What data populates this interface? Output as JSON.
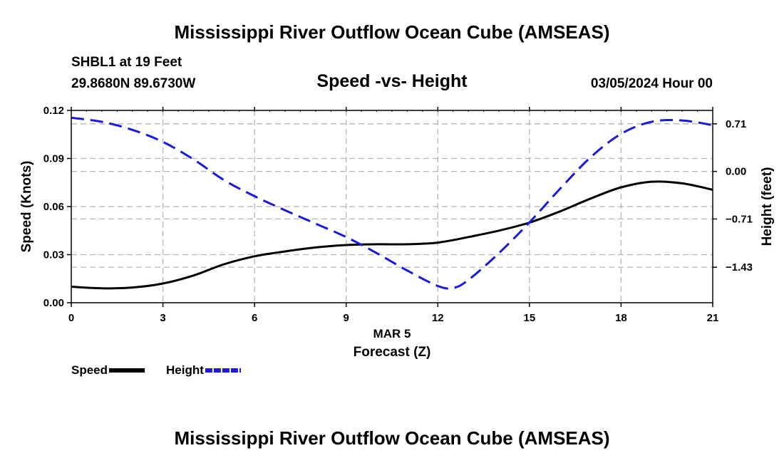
{
  "header": {
    "title": "Mississippi River Outflow Ocean Cube (AMSEAS)",
    "station": "SHBL1 at 19 Feet",
    "coordinates": "29.8680N  89.6730W",
    "subtitle": "Speed -vs- Height",
    "date": "03/05/2024 Hour 00"
  },
  "footer": {
    "title": "Mississippi River Outflow Ocean Cube (AMSEAS)"
  },
  "chart_data": {
    "type": "line",
    "title": "Speed -vs- Height",
    "xlabel": "Forecast (Z)",
    "date_label": "MAR 5",
    "ylabel_left": "Speed (Knots)",
    "ylabel_right": "Height (feet)",
    "xlim": [
      0,
      21
    ],
    "ylim_left": [
      0,
      0.12
    ],
    "ylim_right": [
      -1.96,
      0.91
    ],
    "x_ticks": [
      "0",
      "3",
      "6",
      "9",
      "12",
      "15",
      "18",
      "21"
    ],
    "y_ticks_left": [
      "0.00",
      "0.03",
      "0.06",
      "0.09",
      "0.12"
    ],
    "y_ticks_right": [
      "0.71",
      "0.00",
      "-0.71",
      "-1.43"
    ],
    "grid": true,
    "legend_position": "bottom-left",
    "series": [
      {
        "name": "Speed",
        "axis": "left",
        "color": "#000000",
        "style": "solid",
        "x": [
          0,
          1,
          2,
          3,
          4,
          5,
          6,
          7,
          8,
          9,
          10,
          11,
          12,
          13,
          14,
          15,
          16,
          17,
          18,
          19,
          20,
          21
        ],
        "values": [
          0.01,
          0.009,
          0.0095,
          0.012,
          0.017,
          0.024,
          0.029,
          0.032,
          0.0345,
          0.036,
          0.0365,
          0.0365,
          0.0375,
          0.041,
          0.045,
          0.05,
          0.057,
          0.065,
          0.072,
          0.0755,
          0.0745,
          0.0705
        ]
      },
      {
        "name": "Height",
        "axis": "right",
        "color": "#1a1adc",
        "style": "dashed",
        "x": [
          0,
          1,
          2,
          3,
          4,
          5,
          6,
          7,
          8,
          9,
          10,
          11,
          12,
          12.5,
          13,
          14,
          15,
          16,
          17,
          18,
          19,
          20,
          21
        ],
        "values": [
          0.8,
          0.74,
          0.62,
          0.44,
          0.18,
          -0.13,
          -0.37,
          -0.58,
          -0.78,
          -0.98,
          -1.22,
          -1.48,
          -1.71,
          -1.74,
          -1.62,
          -1.22,
          -0.76,
          -0.26,
          0.21,
          0.56,
          0.74,
          0.76,
          0.69
        ]
      }
    ]
  }
}
